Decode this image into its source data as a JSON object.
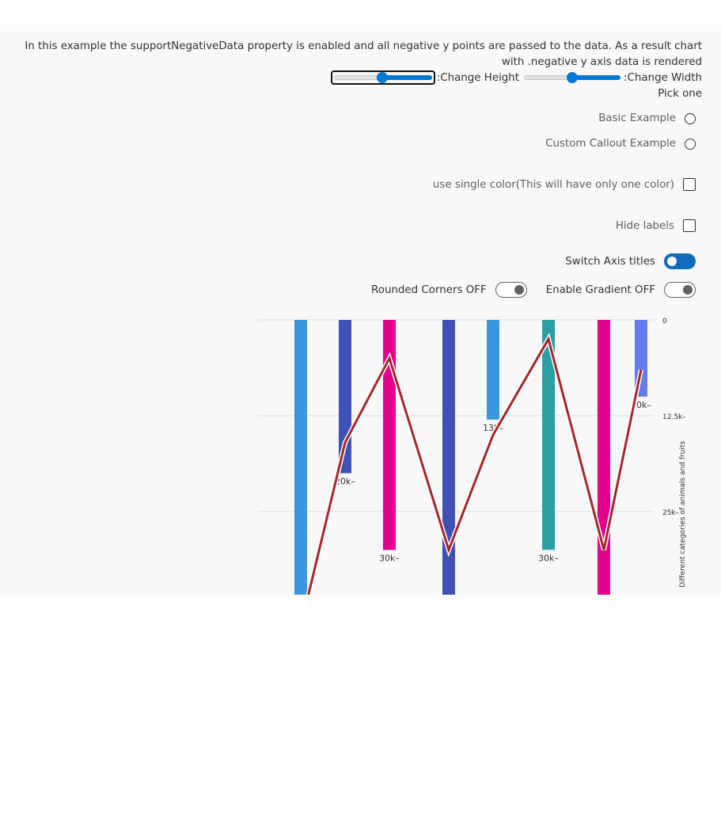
{
  "description": "In this example the supportNegativeData property is enabled and all negative y points are passed to the data. As a result chart with .negative y axis data is rendered",
  "controls": {
    "height_label": ":Change Height",
    "height_value": 0.55,
    "width_label": ":Change Width",
    "width_value": 0.5,
    "pick_label": "Pick one",
    "options": [
      "Basic Example",
      "Custom Callout Example"
    ],
    "single_color_label": "use single color(This will have only one color)",
    "hide_labels_label": "Hide labels",
    "switch_axis_label": "Switch Axis titles",
    "rounded_corners_label": "Rounded Corners OFF",
    "gradient_label": "Enable Gradient OFF"
  },
  "colors": {
    "accent": "#0078d4",
    "line": "#a4262c"
  },
  "chart_data": {
    "type": "bar",
    "inverted_y_axis": true,
    "ylabel": "Different categories of animals and fruits",
    "y_ticks": [
      "0",
      "12.5k",
      "25k"
    ],
    "bars": [
      {
        "value": 40000,
        "color": "#3a96dd",
        "label": ""
      },
      {
        "value": 20000,
        "color": "#3f51b5",
        "label": "20k"
      },
      {
        "value": 30000,
        "color": "#e3008c",
        "label": "30k"
      },
      {
        "value": 40000,
        "color": "#3f51b5",
        "label": ""
      },
      {
        "value": 13000,
        "color": "#3a96dd",
        "label": "13k"
      },
      {
        "value": 30000,
        "color": "#2aa0a4",
        "label": "30k"
      },
      {
        "value": 40000,
        "color": "#e3008c",
        "label": ""
      },
      {
        "value": 10000,
        "color": "#637cef",
        "label": "10k"
      }
    ],
    "line": [
      40000,
      16000,
      5000,
      30000,
      15000,
      2500,
      30000,
      6500
    ]
  }
}
